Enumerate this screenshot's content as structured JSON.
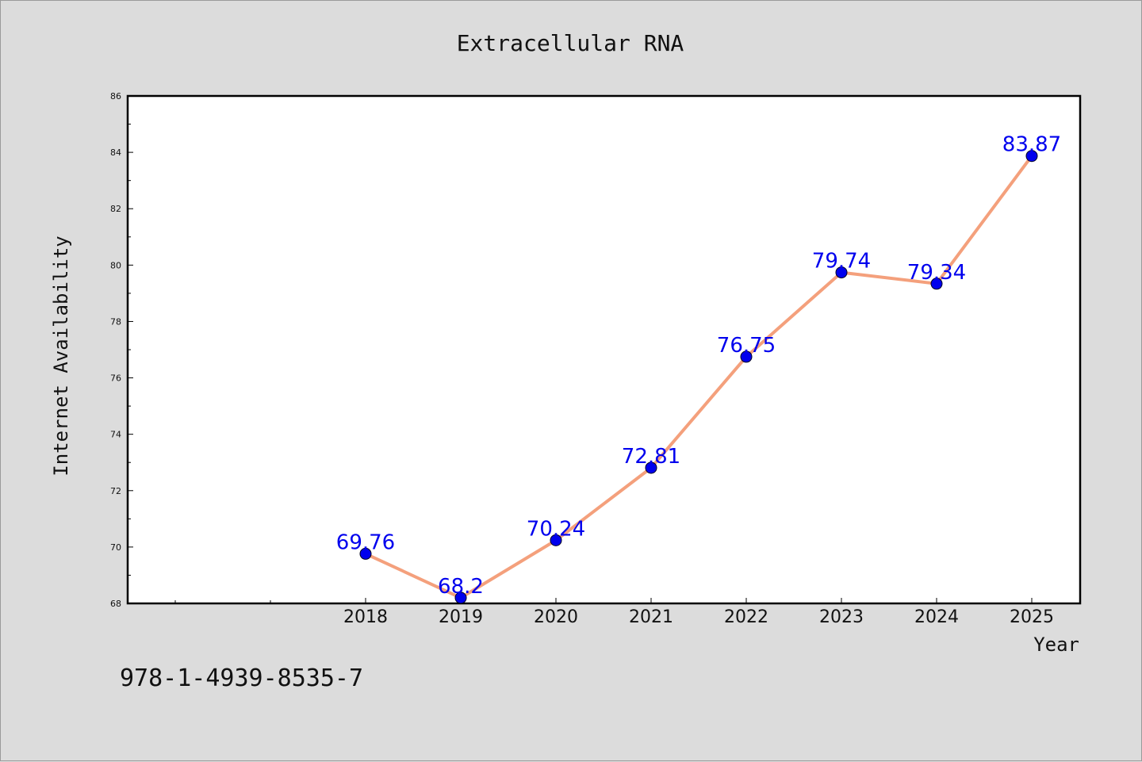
{
  "chart_data": {
    "type": "line",
    "title": "Extracellular RNA",
    "xlabel": "Year",
    "ylabel": "Internet Availability",
    "x": [
      "2018",
      "2019",
      "2020",
      "2021",
      "2022",
      "2023",
      "2024",
      "2025"
    ],
    "series": [
      {
        "values": [
          69.76,
          68.2,
          70.24,
          72.81,
          76.75,
          79.74,
          79.34,
          83.87
        ],
        "data_labels": [
          "69.76",
          "68.2",
          "70.24",
          "72.81",
          "76.75",
          "79.74",
          "79.34",
          "83.87"
        ]
      }
    ],
    "ylim": [
      68,
      86
    ],
    "yticks": [
      "68",
      "70",
      "72",
      "74",
      "76",
      "78",
      "80",
      "82",
      "84",
      "86"
    ],
    "grid": false,
    "legend": "none",
    "colors": {
      "line": "#f4a07c",
      "marker": "#0000ee",
      "data_label": "#0000ee"
    }
  },
  "footer": {
    "code": "978-1-4939-8535-7"
  }
}
